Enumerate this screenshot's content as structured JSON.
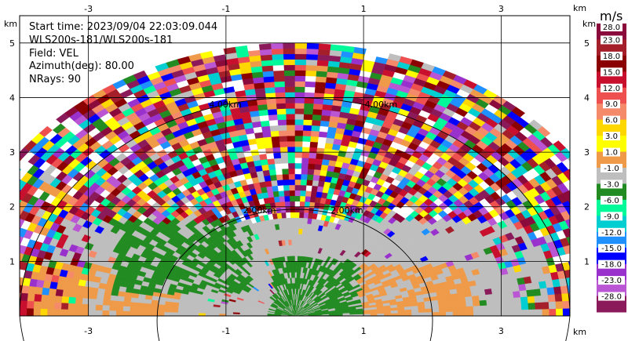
{
  "info": {
    "start_time": "Start time: 2023/09/04 22:03:09.044",
    "site": "WLS200s-181/WLS200s-181",
    "field": "Field: VEL",
    "azimuth": "Azimuth(deg): 80.00",
    "nrays": "NRays: 90"
  },
  "axis_unit": "km",
  "colorbar": {
    "unit": "m/s",
    "colors": [
      "#8b0a3c",
      "#a51f2b",
      "#8b0000",
      "#c8102e",
      "#ee5050",
      "#f48a6a",
      "#ffd700",
      "#ffff00",
      "#ee9a49",
      "#bebebe",
      "#228b22",
      "#00fa9a",
      "#00ced1",
      "#1e90ff",
      "#0000ff",
      "#9932cc",
      "#ba55d3",
      "#8b1a5a"
    ],
    "labels": [
      "28.0",
      "23.0",
      "18.0",
      "15.0",
      "12.0",
      "9.0",
      "6.0",
      "3.0",
      "1.0",
      "-1.0",
      "-3.0",
      "-6.0",
      "-9.0",
      "-12.0",
      "-15.0",
      "-18.0",
      "-23.0",
      "-28.0"
    ]
  },
  "chart_data": {
    "type": "heatmap",
    "subtype": "radar RHI (range-height) sector scan of radial velocity",
    "field": "VEL",
    "units": "m/s",
    "xlim": [
      -4,
      4
    ],
    "ylim": [
      0,
      5.5
    ],
    "xticks": [
      -3,
      -1,
      1,
      3
    ],
    "yticks": [
      1,
      2,
      3,
      4,
      5
    ],
    "x_tick_labels": [
      "-3",
      "-1",
      "1",
      "3"
    ],
    "y_tick_labels": [
      "1",
      "2",
      "3",
      "4",
      "5"
    ],
    "x_unit": "km",
    "y_unit": "km",
    "range_rings": [
      {
        "range_km": 2.0,
        "label": "2.00km"
      },
      {
        "range_km": 4.0,
        "label": "4.00km"
      }
    ],
    "max_range_km": 5.0,
    "grid": true,
    "colorbar_levels": [
      28,
      23,
      18,
      15,
      12,
      9,
      6,
      3,
      1,
      -1,
      -3,
      -6,
      -9,
      -12,
      -15,
      -18,
      -23,
      -28
    ],
    "regions": [
      {
        "description": "near range (< ~2 km)",
        "dominant_values": "-1 to 1 (grey), patches -3 to -1 (green) and 1 to 3 (orange)"
      },
      {
        "description": "far range (~2-5 km)",
        "dominant_values": "noisy mixture across full scale -28 to 28"
      }
    ]
  }
}
